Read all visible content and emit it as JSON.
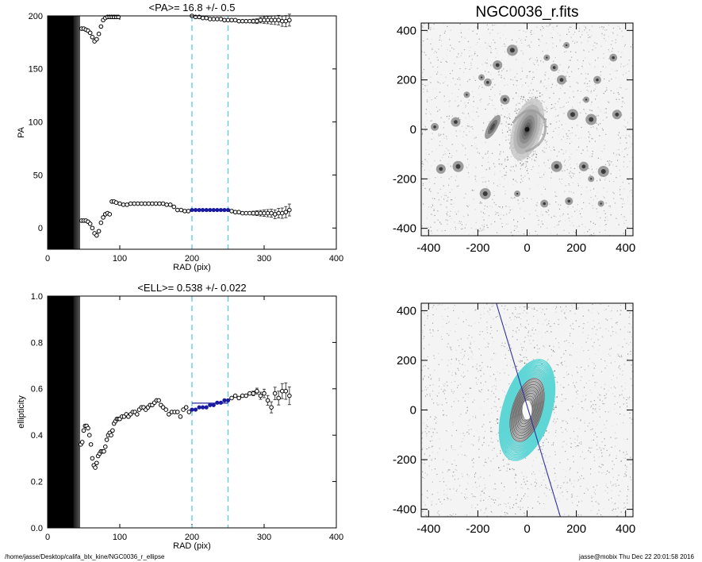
{
  "footer": {
    "path": "/home/jasse/Desktop/califa_blx_kine/NGC0036_r_ellipse",
    "user_stamp": "jasse@mobix  Thu Dec 22 20:01:58 2016"
  },
  "colors": {
    "data_points": "#000000",
    "highlight_points": "#1a1aa0",
    "range_lines": "#5bc8dc",
    "mean_line": "#2a2aa0",
    "contours": "#5fd6d6",
    "pa_axis_line": "#3030a0"
  },
  "chart_data": [
    {
      "type": "scatter",
      "title": "<PA>=  16.8 +/-   0.5",
      "xlabel": "RAD (pix)",
      "ylabel": "PA",
      "xlim": [
        0,
        400
      ],
      "ylim": [
        -20,
        200
      ],
      "xticks": [
        0,
        100,
        200,
        300,
        400
      ],
      "yticks": [
        0,
        50,
        100,
        150,
        200
      ],
      "range_lines_x": [
        200,
        250
      ],
      "saturated_band_x": [
        0,
        45
      ],
      "series": [
        {
          "x": [
            47,
            50,
            53,
            56,
            59,
            62,
            65,
            68,
            71,
            74,
            77,
            80,
            83,
            86,
            89,
            92,
            95,
            98
          ],
          "y": [
            188,
            188,
            187,
            186,
            184,
            180,
            176,
            178,
            183,
            190,
            196,
            198,
            199,
            199,
            199,
            199,
            199,
            199
          ]
        },
        {
          "x": [
            200,
            205,
            210,
            215,
            220,
            225,
            230,
            235,
            240,
            245,
            250,
            255,
            260,
            265,
            270,
            275,
            280,
            285,
            290,
            295,
            300,
            305,
            310,
            315,
            320,
            325,
            330,
            335
          ],
          "y": [
            200,
            199,
            199,
            198,
            198,
            197,
            197,
            197,
            197,
            196,
            196,
            196,
            196,
            195,
            195,
            195,
            195,
            195,
            195,
            196,
            196,
            196,
            196,
            196,
            196,
            195,
            195,
            196
          ]
        },
        {
          "x": [
            47,
            50,
            53,
            56,
            59,
            62,
            65,
            68,
            71,
            74,
            77,
            80,
            83,
            86,
            89,
            92,
            95,
            100,
            105,
            110,
            115,
            120,
            125,
            130,
            135,
            140,
            145,
            150,
            155,
            160,
            165,
            170,
            175,
            180,
            185,
            190,
            195
          ],
          "y": [
            7,
            7,
            7,
            6,
            4,
            0,
            -5,
            -7,
            -3,
            5,
            10,
            13,
            14,
            13,
            25,
            25,
            24,
            23,
            22,
            22,
            23,
            23,
            23,
            23,
            23,
            23,
            23,
            23,
            23,
            23,
            22,
            22,
            20,
            17,
            17,
            16,
            16
          ]
        },
        {
          "name": "fit range",
          "x": [
            200,
            205,
            210,
            215,
            220,
            225,
            230,
            235,
            240,
            245,
            250
          ],
          "y": [
            17,
            17,
            17,
            17,
            17,
            17,
            17,
            17,
            17,
            17,
            17
          ]
        },
        {
          "x": [
            255,
            260,
            265,
            270,
            275,
            280,
            285,
            290,
            295,
            300,
            305,
            310,
            315,
            320,
            325,
            330,
            335
          ],
          "y": [
            16,
            15,
            15,
            14,
            14,
            14,
            14,
            14,
            14,
            14,
            14,
            14,
            13,
            14,
            14,
            15,
            17
          ]
        }
      ]
    },
    {
      "type": "scatter",
      "title": "<ELL>= 0.538 +/-  0.022",
      "xlabel": "RAD (pix)",
      "ylabel": "ellipticity",
      "xlim": [
        0,
        400
      ],
      "ylim": [
        0.0,
        1.0
      ],
      "xticks": [
        0,
        100,
        200,
        300,
        400
      ],
      "yticks": [
        0.0,
        0.2,
        0.4,
        0.6,
        0.8,
        1.0
      ],
      "range_lines_x": [
        200,
        250
      ],
      "mean_line": {
        "x": [
          200,
          250
        ],
        "y": [
          0.538,
          0.538
        ]
      },
      "saturated_band_x": [
        0,
        45
      ],
      "series": [
        {
          "x": [
            46,
            48,
            50,
            52,
            54,
            56,
            58,
            60,
            62,
            64,
            66,
            68,
            70,
            72,
            74,
            76,
            78,
            80,
            82,
            84,
            86,
            88,
            90,
            92,
            94,
            96,
            98,
            100,
            103,
            106,
            109,
            112,
            115,
            118,
            121,
            124,
            127,
            130,
            133,
            136,
            139,
            142,
            145,
            148,
            151,
            154,
            157,
            160,
            164,
            168,
            172,
            176,
            180,
            184,
            188,
            192,
            196
          ],
          "y": [
            0.36,
            0.37,
            0.42,
            0.44,
            0.44,
            0.43,
            0.4,
            0.36,
            0.3,
            0.27,
            0.26,
            0.28,
            0.31,
            0.32,
            0.33,
            0.33,
            0.33,
            0.35,
            0.38,
            0.4,
            0.41,
            0.4,
            0.42,
            0.45,
            0.46,
            0.47,
            0.47,
            0.47,
            0.48,
            0.48,
            0.49,
            0.48,
            0.49,
            0.5,
            0.5,
            0.49,
            0.51,
            0.52,
            0.52,
            0.51,
            0.52,
            0.53,
            0.53,
            0.54,
            0.55,
            0.55,
            0.53,
            0.52,
            0.51,
            0.49,
            0.5,
            0.5,
            0.5,
            0.48,
            0.51,
            0.52,
            0.5
          ]
        },
        {
          "name": "fit range",
          "x": [
            200,
            205,
            210,
            215,
            220,
            225,
            230,
            235,
            240,
            245,
            250
          ],
          "y": [
            0.51,
            0.51,
            0.52,
            0.52,
            0.52,
            0.53,
            0.53,
            0.54,
            0.54,
            0.55,
            0.55
          ]
        },
        {
          "x": [
            255,
            260,
            265,
            270,
            275,
            280,
            285,
            290,
            295,
            300,
            305,
            310,
            315,
            320,
            325,
            330,
            335
          ],
          "y": [
            0.56,
            0.57,
            0.56,
            0.57,
            0.57,
            0.58,
            0.58,
            0.59,
            0.57,
            0.58,
            0.55,
            0.52,
            0.58,
            0.56,
            0.59,
            0.59,
            0.57
          ]
        }
      ]
    },
    {
      "type": "image",
      "title": "NGC0036_r.fits",
      "xlim": [
        -430,
        430
      ],
      "ylim": [
        -430,
        430
      ],
      "xticks": [
        -400,
        -200,
        0,
        200,
        400
      ],
      "yticks": [
        -400,
        -200,
        0,
        200,
        400
      ],
      "galaxy": {
        "center": [
          0,
          0
        ],
        "semi_major": 130,
        "ellipticity": 0.54,
        "pa_deg": 17
      },
      "companion": {
        "center": [
          -140,
          10
        ],
        "semi_major": 55,
        "ellipticity": 0.65,
        "pa_deg": 30
      },
      "stars": [
        [
          -185,
          210
        ],
        [
          -375,
          10
        ],
        [
          -350,
          -160
        ],
        [
          -280,
          -150
        ],
        [
          -245,
          140
        ],
        [
          -160,
          190
        ],
        [
          -120,
          260
        ],
        [
          -60,
          320
        ],
        [
          80,
          290
        ],
        [
          110,
          250
        ],
        [
          140,
          200
        ],
        [
          185,
          60
        ],
        [
          240,
          120
        ],
        [
          285,
          200
        ],
        [
          365,
          60
        ],
        [
          260,
          40
        ],
        [
          160,
          340
        ],
        [
          350,
          290
        ],
        [
          -290,
          30
        ],
        [
          -170,
          -260
        ],
        [
          260,
          -200
        ],
        [
          170,
          -290
        ],
        [
          230,
          -150
        ],
        [
          310,
          -170
        ],
        [
          -40,
          -260
        ],
        [
          70,
          -300
        ],
        [
          -90,
          120
        ],
        [
          120,
          -150
        ],
        [
          300,
          -300
        ]
      ]
    },
    {
      "type": "image",
      "xlim": [
        -430,
        430
      ],
      "ylim": [
        -430,
        430
      ],
      "xticks": [
        -400,
        -200,
        0,
        200,
        400
      ],
      "yticks": [
        -400,
        -200,
        0,
        200,
        400
      ],
      "contours": {
        "center": [
          0,
          0
        ],
        "pa_deg": 17,
        "ellipticity": 0.54,
        "semi_major_max": 220
      },
      "pa_axis_line": {
        "x": [
          -125,
          135
        ],
        "y": [
          430,
          -430
        ]
      }
    }
  ]
}
